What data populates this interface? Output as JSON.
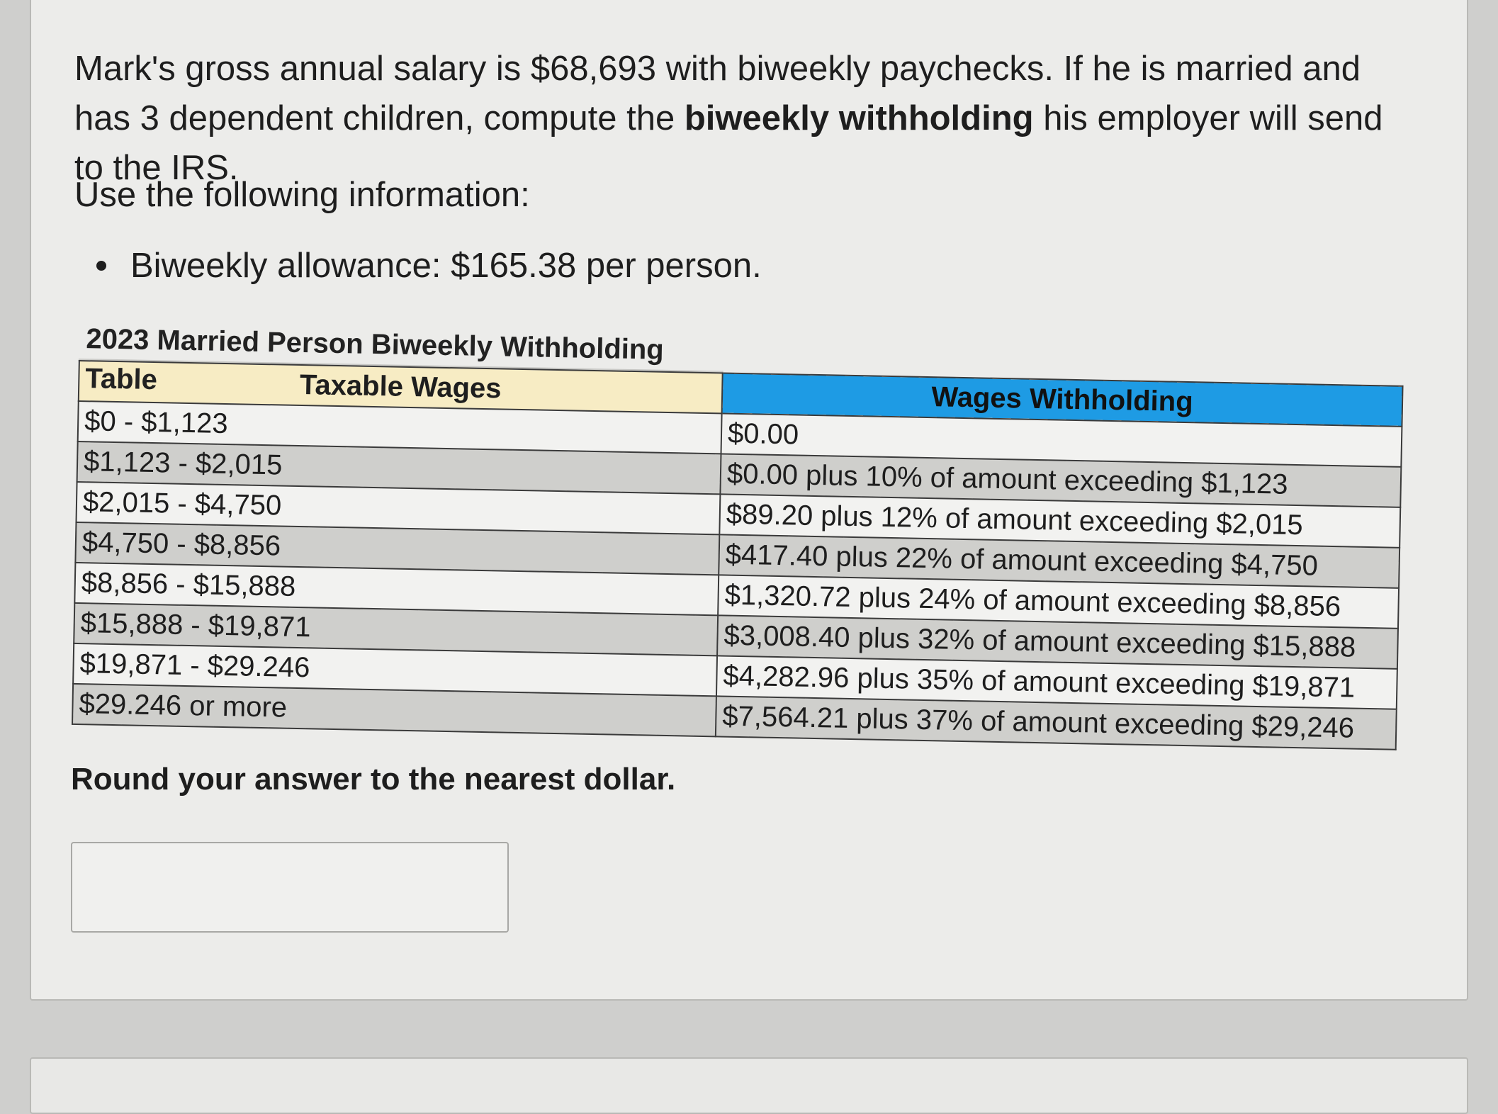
{
  "question": {
    "part1": "Mark's gross annual salary is $68,693 with biweekly paychecks. If he is married and has 3 dependent children, compute the ",
    "bold": "biweekly withholding",
    "part2": " his employer will send to the IRS."
  },
  "intro": "Use the following information:",
  "bullets": [
    "Biweekly allowance: $165.38 per person."
  ],
  "table": {
    "title": "2023 Married Person Biweekly Withholding Table",
    "headers": [
      "Taxable Wages",
      "Wages Withholding"
    ],
    "rows": [
      [
        "$0 - $1,123",
        "$0.00"
      ],
      [
        "$1,123 - $2,015",
        "$0.00 plus 10% of amount exceeding $1,123"
      ],
      [
        "$2,015 - $4,750",
        "$89.20 plus 12% of amount exceeding $2,015"
      ],
      [
        "$4,750 - $8,856",
        "$417.40 plus 22% of amount exceeding $4,750"
      ],
      [
        "$8,856 - $15,888",
        "$1,320.72 plus 24% of amount exceeding $8,856"
      ],
      [
        "$15,888 - $19,871",
        "$3,008.40 plus 32% of amount exceeding $15,888"
      ],
      [
        "$19,871 - $29.246",
        "$4,282.96 plus 35% of amount exceeding $19,871"
      ],
      [
        "$29.246 or more",
        "$7,564.21 plus 37% of amount exceeding $29,246"
      ]
    ]
  },
  "round_instruction": "Round your answer to the nearest dollar.",
  "answer": {
    "value": ""
  }
}
